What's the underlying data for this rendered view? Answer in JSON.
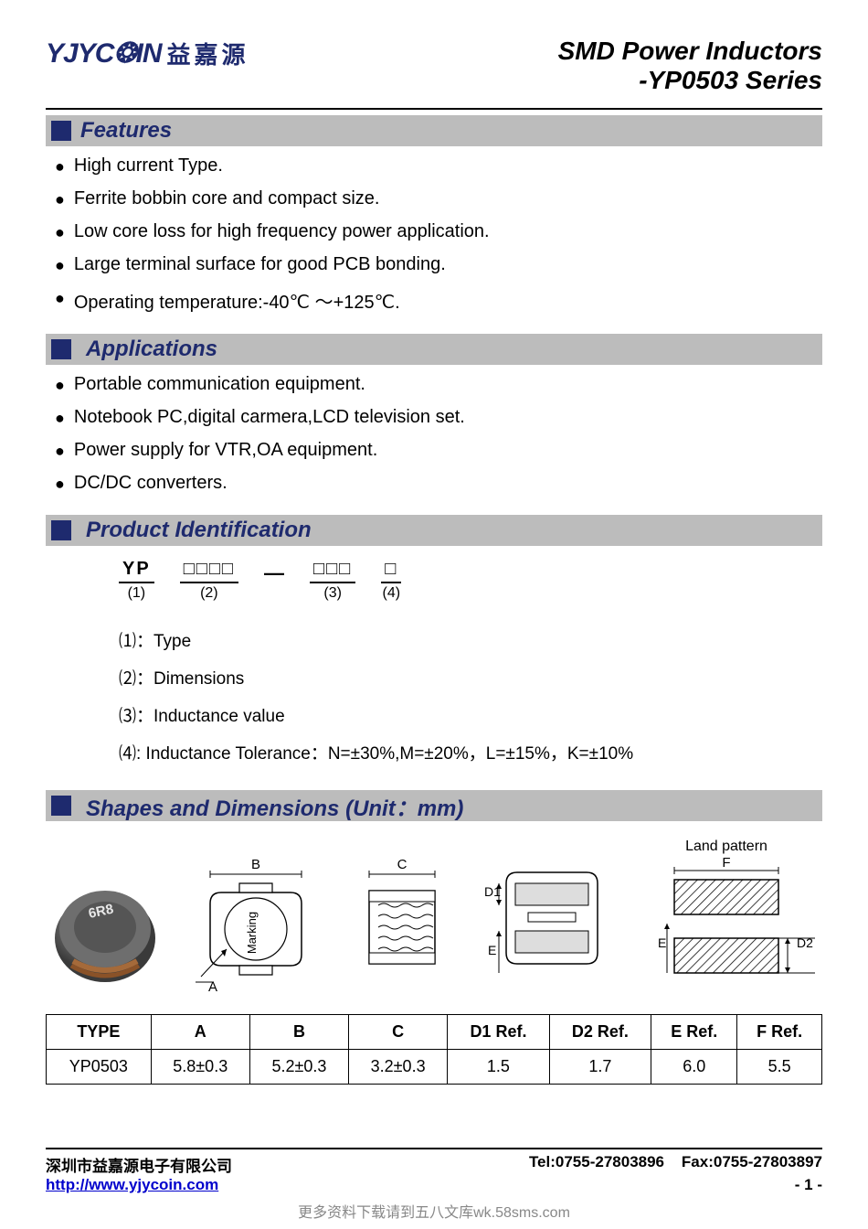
{
  "colors": {
    "brand_blue": "#1e2a6e",
    "section_bg": "#bcbcbc",
    "text": "#000000",
    "link": "#0000cc",
    "watermark": "#888888"
  },
  "header": {
    "logo_en": "YJYC❂IN",
    "logo_cn": "益嘉源",
    "title_line1": "SMD Power Inductors",
    "title_line2": "-YP0503 Series"
  },
  "sections": {
    "features": {
      "title": "Features",
      "items": [
        "High current Type.",
        "Ferrite bobbin core and compact size.",
        "Low core loss for high frequency power application.",
        "Large terminal surface for good PCB bonding.",
        "Operating temperature:-40℃ ～+125℃."
      ]
    },
    "applications": {
      "title": "Applications",
      "items": [
        "Portable communication equipment.",
        "Notebook PC,digital carmera,LCD television set.",
        "Power supply for VTR,OA equipment.",
        "DC/DC converters."
      ]
    },
    "ident": {
      "title": "Product Identification",
      "parts": [
        {
          "top": "YP",
          "bot": "(1)"
        },
        {
          "top": "□□□□",
          "bot": "(2)"
        },
        {
          "top": "□□□",
          "bot": "(3)"
        },
        {
          "top": "□",
          "bot": "(4)"
        }
      ],
      "legend": [
        "⑴：Type",
        "⑵：Dimensions",
        "⑶：Inductance value",
        "⑷:  Inductance Tolerance：N=±30%,M=±20%，L=±15%，K=±10%"
      ]
    },
    "shapes": {
      "title": "Shapes and Dimensions (Unit：mm)",
      "photo_label": "6R8",
      "dim_labels": {
        "A": "A",
        "B": "B",
        "C": "C",
        "D1": "D1",
        "D2": "D2",
        "E": "E",
        "F": "F",
        "marking": "Marking",
        "land": "Land pattern"
      }
    }
  },
  "dim_table": {
    "columns": [
      "TYPE",
      "A",
      "B",
      "C",
      "D1 Ref.",
      "D2 Ref.",
      "E Ref.",
      "F Ref."
    ],
    "rows": [
      [
        "YP0503",
        "5.8±0.3",
        "5.2±0.3",
        "3.2±0.3",
        "1.5",
        "1.7",
        "6.0",
        "5.5"
      ]
    ]
  },
  "footer": {
    "company": "深圳市益嘉源电子有限公司",
    "tel": "Tel:0755-27803896",
    "fax": "Fax:0755-27803897",
    "url": "http://www.yjycoin.com",
    "page": "- 1 -"
  },
  "watermark": "更多资料下载请到五八文库wk.58sms.com"
}
